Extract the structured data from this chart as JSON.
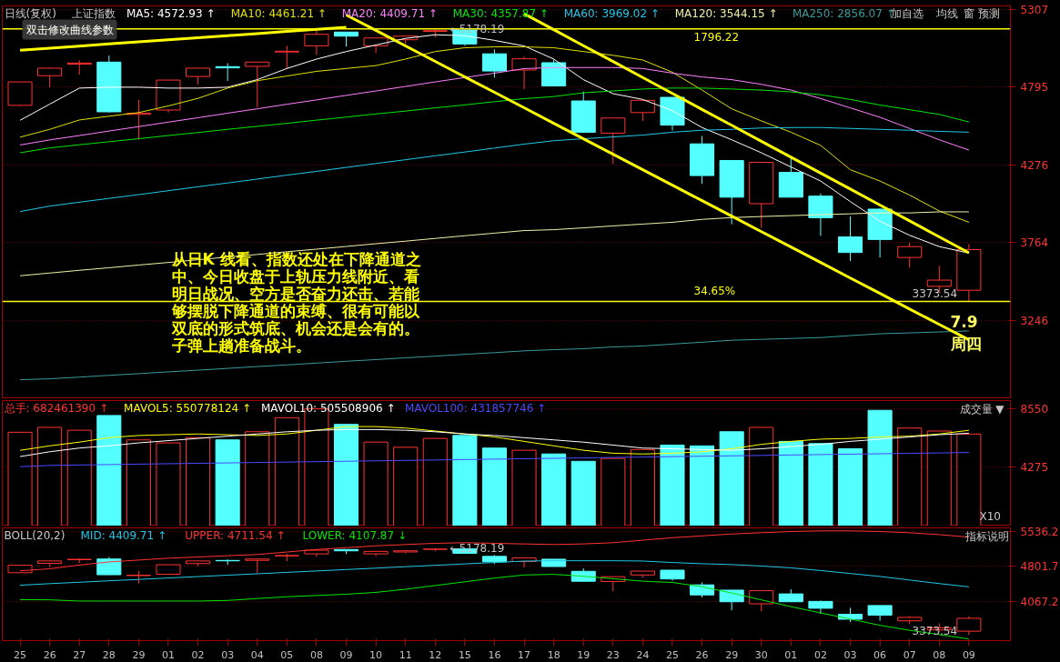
{
  "chart_data": [
    {
      "type": "candlestick",
      "title": "日线(复权)",
      "subtitle": "上证指数",
      "categories": [
        "25",
        "26",
        "27",
        "28",
        "29",
        "01",
        "02",
        "03",
        "04",
        "05",
        "08",
        "09",
        "10",
        "11",
        "12",
        "15",
        "16",
        "17",
        "18",
        "19",
        "23",
        "24",
        "25",
        "26",
        "29",
        "30",
        "01",
        "02",
        "03",
        "06",
        "07",
        "08",
        "09"
      ],
      "ohlc": [
        [
          4672,
          4827,
          4668,
          4827
        ],
        [
          4868,
          4923,
          4791,
          4918
        ],
        [
          4945,
          4970,
          4875,
          4952
        ],
        [
          4958,
          5001,
          4624,
          4629
        ],
        [
          4612,
          4708,
          4445,
          4620
        ],
        [
          4641,
          4839,
          4624,
          4839
        ],
        [
          4863,
          4918,
          4810,
          4918
        ],
        [
          4928,
          4951,
          4834,
          4920
        ],
        [
          4930,
          4958,
          4660,
          4958
        ],
        [
          5025,
          5066,
          4911,
          5030
        ],
        [
          5066,
          5169,
          5006,
          5142
        ],
        [
          5157,
          5157,
          5061,
          5130
        ],
        [
          5066,
          5118,
          5018,
          5118
        ],
        [
          5106,
          5130,
          5078,
          5130
        ],
        [
          5161,
          5178.19,
          5121,
          5166
        ],
        [
          5170,
          5175,
          5066,
          5078
        ],
        [
          5013,
          5042,
          4856,
          4899
        ],
        [
          4906,
          4994,
          4779,
          4980
        ],
        [
          4954,
          4975,
          4801,
          4801
        ],
        [
          4701,
          4763,
          4490,
          4493
        ],
        [
          4488,
          4588,
          4283,
          4588
        ],
        [
          4624,
          4705,
          4569,
          4705
        ],
        [
          4725,
          4725,
          4505,
          4541
        ],
        [
          4417,
          4469,
          4152,
          4207
        ],
        [
          4307,
          4307,
          3885,
          4064
        ],
        [
          4021,
          4295,
          3861,
          4295
        ],
        [
          4228,
          4326,
          4064,
          4064
        ],
        [
          4071,
          4088,
          3808,
          3928
        ],
        [
          3801,
          3937,
          3641,
          3698
        ],
        [
          3985,
          3990,
          3665,
          3784
        ],
        [
          3665,
          3761,
          3598,
          3737
        ],
        [
          3474,
          3610,
          3431,
          3515
        ],
        [
          3448,
          3753,
          3373.54,
          3717
        ]
      ],
      "colors": [
        "#ff3232",
        "#ff3232",
        "#ff3232",
        "#54ffff",
        "#ff3232",
        "#ff3232",
        "#ff3232",
        "#54ffff",
        "#ff3232",
        "#ff3232",
        "#ff3232",
        "#54ffff",
        "#ff3232",
        "#ff3232",
        "#ff3232",
        "#54ffff",
        "#54ffff",
        "#ff3232",
        "#54ffff",
        "#54ffff",
        "#ff3232",
        "#ff3232",
        "#54ffff",
        "#54ffff",
        "#54ffff",
        "#ff3232",
        "#54ffff",
        "#54ffff",
        "#54ffff",
        "#54ffff",
        "#ff3232",
        "#ff3232",
        "#ff3232"
      ],
      "series": [
        {
          "name": "MA5: 4572.93 ↑",
          "type": "line",
          "color": "#ffffff",
          "values": [
            4572.93,
            4680,
            4786,
            4792,
            4792,
            4786,
            4786,
            4792,
            4842,
            4916,
            4978,
            5028,
            5071,
            5115,
            5139,
            5133,
            5102,
            5065,
            4978,
            4842,
            4749,
            4711,
            4637,
            4525,
            4444,
            4358,
            4264,
            4171,
            4035,
            3905,
            3812,
            3737,
            3694
          ]
        },
        {
          "name": "MA10: 4461.21 ↑",
          "type": "line",
          "color": "#e0e000",
          "values": [
            4461.21,
            4513,
            4575,
            4600,
            4624,
            4668,
            4718,
            4786,
            4835,
            4866,
            4897,
            4916,
            4935,
            4978,
            5028,
            5053,
            5059,
            5059,
            5053,
            5028,
            5003,
            4972,
            4891,
            4773,
            4649,
            4569,
            4494,
            4407,
            4246,
            4171,
            4078,
            3973,
            3898
          ]
        },
        {
          "name": "MA20: 4409.71 ↑",
          "type": "line",
          "color": "#ff80ff",
          "values": [
            4409.71,
            4443,
            4472,
            4502,
            4531,
            4561,
            4590,
            4620,
            4649,
            4679,
            4708,
            4738,
            4767,
            4797,
            4827,
            4856,
            4885,
            4915,
            4922,
            4922,
            4922,
            4916,
            4885,
            4860,
            4842,
            4811,
            4773,
            4717,
            4655,
            4593,
            4519,
            4444,
            4376
          ]
        },
        {
          "name": "MA30: 4357.87 ↑",
          "type": "line",
          "color": "#00e600",
          "values": [
            4357.87,
            4390,
            4411,
            4431,
            4451,
            4472,
            4492,
            4513,
            4533,
            4553,
            4574,
            4594,
            4615,
            4634,
            4655,
            4675,
            4696,
            4716,
            4730,
            4755,
            4767,
            4780,
            4786,
            4786,
            4780,
            4773,
            4761,
            4742,
            4711,
            4674,
            4643,
            4612,
            4562
          ]
        },
        {
          "name": "MA60: 3969.02 ↑",
          "type": "line",
          "color": "#20c8e8",
          "values": [
            3969.02,
            4005,
            4031,
            4056,
            4081,
            4107,
            4133,
            4158,
            4184,
            4210,
            4235,
            4261,
            4287,
            4312,
            4338,
            4363,
            4389,
            4415,
            4438,
            4451,
            4463,
            4475,
            4494,
            4507,
            4513,
            4522,
            4525,
            4525,
            4519,
            4513,
            4507,
            4500,
            4494
          ]
        },
        {
          "name": "MA120: 3544.15 ↑",
          "type": "line",
          "color": "#f0f0a8",
          "values": [
            3544.15,
            3562,
            3580,
            3597,
            3615,
            3632,
            3650,
            3668,
            3685,
            3703,
            3720,
            3738,
            3756,
            3773,
            3791,
            3809,
            3826,
            3843,
            3849,
            3861,
            3874,
            3886,
            3898,
            3917,
            3929,
            3936,
            3942,
            3948,
            3954,
            3960,
            3960,
            3967,
            3967
          ]
        },
        {
          "name": "MA250: 2856.07 ↑",
          "type": "line",
          "color": "#3a9a9a",
          "values": [
            2856.07,
            2862,
            2873,
            2885,
            2896,
            2908,
            2919,
            2931,
            2943,
            2954,
            2966,
            2978,
            2989,
            3001,
            3012,
            3024,
            3035,
            3047,
            3055,
            3061,
            3073,
            3079,
            3092,
            3104,
            3117,
            3123,
            3129,
            3135,
            3148,
            3160,
            3166,
            3172,
            3179
          ]
        },
        {
          "type": "line",
          "color": "#ffff00",
          "values": [
            5036,
            5050,
            5064,
            5078,
            5092,
            5106,
            5119,
            5133,
            5147,
            5161,
            5175,
            5189,
            null,
            null,
            null,
            null,
            null,
            null,
            null,
            null,
            null,
            null,
            null,
            null,
            null,
            null,
            null,
            null,
            null,
            null,
            null,
            null,
            null
          ]
        },
        {
          "type": "line",
          "color": "#ffff00",
          "values": [
            null,
            null,
            null,
            null,
            null,
            null,
            null,
            null,
            null,
            null,
            null,
            5270,
            5168,
            5065,
            4963,
            4860,
            4758,
            4656,
            4553,
            4451,
            4348,
            4246,
            4144,
            4041,
            3939,
            3836,
            3734,
            3632,
            3529,
            3427,
            3324,
            3222,
            3120
          ]
        },
        {
          "type": "line",
          "color": "#ffff00",
          "values": [
            null,
            null,
            null,
            null,
            null,
            null,
            null,
            null,
            null,
            null,
            null,
            null,
            null,
            null,
            null,
            null,
            null,
            5278,
            5173,
            5067,
            4962,
            4856,
            4751,
            4645,
            4540,
            4434,
            4329,
            4223,
            4118,
            4012,
            3907,
            3801,
            3696
          ]
        }
      ],
      "ylim": [
        2730,
        5330
      ],
      "yticks": [
        3246,
        3764,
        4276,
        4795,
        5307
      ],
      "grid": "y",
      "legend": "top",
      "tick_labels": "y",
      "ref_lines": [
        {
          "axis": "y",
          "value": 5178.19,
          "color": "#ffff00"
        },
        {
          "axis": "y",
          "value": 3373.54,
          "color": "#ffff00"
        }
      ],
      "annotations": [
        "双击修改曲线参数",
        "从日K 线看、指数还处在下降通道之",
        "中、今日收盘于上轨压力线附近、看",
        "明日战况、空方是否奋力还击、若能",
        "够摆脱下降通道的束缚、很有可能以",
        "双底的形式筑底、机会还是会有的。",
        "子弹上趟准备战斗。",
        "7.9",
        "周四",
        "1796.22",
        "34.65%",
        "加自选",
        "均线",
        "窗",
        "预测",
        "3373.54",
        {
          "text": "←5178.19",
          "x": "12",
          "y": 5178.19
        }
      ]
    },
    {
      "type": "bar",
      "categories": [
        "25",
        "26",
        "27",
        "28",
        "29",
        "01",
        "02",
        "03",
        "04",
        "05",
        "08",
        "09",
        "10",
        "11",
        "12",
        "15",
        "16",
        "17",
        "18",
        "19",
        "23",
        "24",
        "25",
        "26",
        "29",
        "30",
        "01",
        "02",
        "03",
        "06",
        "07",
        "08",
        "09"
      ],
      "series": [
        {
          "name": "总手: 682461390 ↑",
          "color": "#ff3232",
          "colors": [
            "#ff3232",
            "#ff3232",
            "#ff3232",
            "#54ffff",
            "#ff3232",
            "#ff3232",
            "#ff3232",
            "#54ffff",
            "#ff3232",
            "#ff3232",
            "#ff3232",
            "#54ffff",
            "#ff3232",
            "#ff3232",
            "#ff3232",
            "#54ffff",
            "#54ffff",
            "#ff3232",
            "#54ffff",
            "#54ffff",
            "#ff3232",
            "#ff3232",
            "#54ffff",
            "#54ffff",
            "#54ffff",
            "#ff3232",
            "#54ffff",
            "#54ffff",
            "#54ffff",
            "#54ffff",
            "#ff3232",
            "#ff3232",
            "#ff3232"
          ],
          "values": [
            6825,
            7181,
            6971,
            8043,
            6268,
            6050,
            6427,
            6268,
            6862,
            7884,
            8528,
            7398,
            6108,
            5732,
            6376,
            6594,
            5674,
            5514,
            5246,
            4710,
            4920,
            5565,
            5891,
            5833,
            6862,
            7181,
            6159,
            6000,
            5623,
            8420,
            7130,
            6913,
            6695
          ]
        },
        {
          "name": "MAVOL5: 550778124 ↑",
          "type": "line",
          "color": "#ffff00",
          "values": [
            5508,
            5837,
            6106,
            6430,
            6591,
            6645,
            6699,
            6645,
            6591,
            6699,
            6968,
            7238,
            7238,
            7130,
            6914,
            6699,
            6483,
            6160,
            5837,
            5514,
            5298,
            5244,
            5298,
            5406,
            5621,
            5945,
            6160,
            6322,
            6376,
            6483,
            6537,
            6699,
            6968
          ]
        },
        {
          "name": "MAVOL10: 505508906 ↑",
          "type": "line",
          "color": "#ffffff",
          "values": [
            5055,
            5406,
            5675,
            5837,
            6052,
            6214,
            6376,
            6537,
            6699,
            6860,
            6968,
            7022,
            7022,
            6968,
            6860,
            6699,
            6591,
            6430,
            6268,
            6106,
            5891,
            5675,
            5621,
            5568,
            5514,
            5621,
            5783,
            5945,
            6160,
            6322,
            6483,
            6645,
            6753
          ]
        },
        {
          "name": "MAVOL100: 431857746 ↑",
          "type": "line",
          "color": "#4a4aff",
          "values": [
            4319,
            4412,
            4443,
            4473,
            4503,
            4534,
            4564,
            4594,
            4624,
            4655,
            4685,
            4715,
            4746,
            4776,
            4806,
            4837,
            4867,
            4897,
            4928,
            4958,
            4988,
            5018,
            5049,
            5079,
            5109,
            5140,
            5170,
            5200,
            5230,
            5261,
            5291,
            5321,
            5352
          ]
        }
      ],
      "ylim": [
        0,
        9130
      ],
      "yticks": [
        4275,
        8550
      ],
      "grid": "y",
      "legend": "top",
      "tick_labels": "y",
      "annotations": [
        "成交量 ▼",
        "X10"
      ]
    },
    {
      "type": "candlestick",
      "title": "BOLL(20,2)",
      "categories": [
        "25",
        "26",
        "27",
        "28",
        "29",
        "01",
        "02",
        "03",
        "04",
        "05",
        "08",
        "09",
        "10",
        "11",
        "12",
        "15",
        "16",
        "17",
        "18",
        "19",
        "23",
        "24",
        "25",
        "26",
        "29",
        "30",
        "01",
        "02",
        "03",
        "06",
        "07",
        "08",
        "09"
      ],
      "ohlc": [
        [
          4672,
          4827,
          4668,
          4827
        ],
        [
          4868,
          4923,
          4791,
          4918
        ],
        [
          4945,
          4970,
          4875,
          4952
        ],
        [
          4958,
          5001,
          4624,
          4629
        ],
        [
          4612,
          4708,
          4445,
          4620
        ],
        [
          4641,
          4839,
          4624,
          4839
        ],
        [
          4863,
          4918,
          4810,
          4918
        ],
        [
          4928,
          4951,
          4834,
          4920
        ],
        [
          4930,
          4958,
          4660,
          4958
        ],
        [
          5025,
          5066,
          4911,
          5030
        ],
        [
          5066,
          5169,
          5006,
          5142
        ],
        [
          5157,
          5157,
          5061,
          5130
        ],
        [
          5066,
          5118,
          5018,
          5118
        ],
        [
          5106,
          5130,
          5078,
          5130
        ],
        [
          5161,
          5178.19,
          5121,
          5166
        ],
        [
          5170,
          5175,
          5066,
          5078
        ],
        [
          5013,
          5042,
          4856,
          4899
        ],
        [
          4906,
          4994,
          4779,
          4980
        ],
        [
          4954,
          4954,
          4801,
          4801
        ],
        [
          4701,
          4763,
          4490,
          4493
        ],
        [
          4488,
          4588,
          4283,
          4588
        ],
        [
          4624,
          4705,
          4569,
          4705
        ],
        [
          4725,
          4725,
          4505,
          4541
        ],
        [
          4417,
          4469,
          4152,
          4207
        ],
        [
          4307,
          4307,
          3885,
          4064
        ],
        [
          4021,
          4295,
          3861,
          4295
        ],
        [
          4228,
          4326,
          4064,
          4064
        ],
        [
          4071,
          4088,
          3808,
          3928
        ],
        [
          3801,
          3937,
          3641,
          3698
        ],
        [
          3985,
          3990,
          3665,
          3784
        ],
        [
          3665,
          3761,
          3598,
          3737
        ],
        [
          3474,
          3610,
          3431,
          3515
        ],
        [
          3448,
          3753,
          3373.54,
          3717
        ]
      ],
      "colors": [
        "#ff3232",
        "#ff3232",
        "#ff3232",
        "#54ffff",
        "#ff3232",
        "#ff3232",
        "#ff3232",
        "#54ffff",
        "#ff3232",
        "#ff3232",
        "#ff3232",
        "#54ffff",
        "#ff3232",
        "#ff3232",
        "#ff3232",
        "#54ffff",
        "#54ffff",
        "#ff3232",
        "#54ffff",
        "#54ffff",
        "#ff3232",
        "#ff3232",
        "#54ffff",
        "#54ffff",
        "#54ffff",
        "#ff3232",
        "#54ffff",
        "#54ffff",
        "#54ffff",
        "#54ffff",
        "#ff3232",
        "#ff3232",
        "#ff3232"
      ],
      "series": [
        {
          "name": "MID: 4409.71 ↑",
          "type": "line",
          "color": "#20c8e8",
          "values": [
            4409.71,
            4443,
            4472,
            4502,
            4531,
            4561,
            4590,
            4620,
            4649,
            4679,
            4708,
            4738,
            4767,
            4797,
            4827,
            4856,
            4885,
            4915,
            4922,
            4922,
            4922,
            4916,
            4885,
            4860,
            4842,
            4811,
            4773,
            4717,
            4655,
            4593,
            4519,
            4444,
            4376
          ]
        },
        {
          "name": "UPPER: 4711.54 ↑",
          "type": "line",
          "color": "#ff3232",
          "values": [
            4711.54,
            4754,
            4832,
            4897,
            4936,
            4975,
            5001,
            5027,
            5053,
            5105,
            5157,
            5196,
            5235,
            5261,
            5287,
            5300,
            5287,
            5274,
            5261,
            5274,
            5300,
            5352,
            5404,
            5443,
            5482,
            5508,
            5534,
            5547,
            5547,
            5534,
            5508,
            5469,
            5417
          ]
        },
        {
          "name": "LOWER: 4107.87 ↓",
          "type": "line",
          "color": "#00e600",
          "values": [
            4107.87,
            4104,
            4078,
            4078,
            4078,
            4078,
            4078,
            4091,
            4130,
            4169,
            4195,
            4221,
            4260,
            4325,
            4403,
            4481,
            4559,
            4624,
            4637,
            4598,
            4546,
            4494,
            4468,
            4377,
            4247,
            4104,
            3961,
            3831,
            3701,
            3571,
            3467,
            3376,
            3285
          ]
        }
      ],
      "ylim": [
        3250,
        5610
      ],
      "yticks": [
        4067.2,
        4801.7,
        5536.2
      ],
      "grid": "y",
      "legend": "top",
      "annotations": [
        "指标说明",
        "3373.54",
        {
          "text": "←5178.19",
          "x": "12",
          "y": 5178.19
        }
      ]
    }
  ]
}
